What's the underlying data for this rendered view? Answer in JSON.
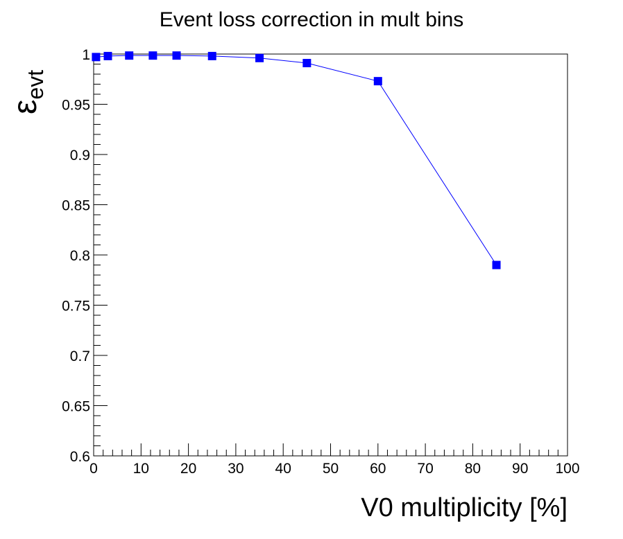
{
  "chart_data": {
    "type": "line",
    "title": "Event loss correction in mult bins",
    "xlabel": "V0 multiplicity [%]",
    "ylabel": "ε",
    "ylabel_subscript": "evt",
    "xlim": [
      0,
      100
    ],
    "ylim": [
      0.6,
      1.0
    ],
    "x_ticks": [
      0,
      10,
      20,
      30,
      40,
      50,
      60,
      70,
      80,
      90,
      100
    ],
    "x_tick_labels": [
      "0",
      "10",
      "20",
      "30",
      "40",
      "50",
      "60",
      "70",
      "80",
      "90",
      "100"
    ],
    "y_ticks": [
      0.6,
      0.65,
      0.7,
      0.75,
      0.8,
      0.85,
      0.9,
      0.95,
      1.0
    ],
    "y_tick_labels": [
      "0.6",
      "0.65",
      "0.7",
      "0.75",
      "0.8",
      "0.85",
      "0.9",
      "0.95",
      "1"
    ],
    "grid": false,
    "series": [
      {
        "color": "#0000ff",
        "marker": "square",
        "x": [
          0.5,
          3,
          7.5,
          12.5,
          17.5,
          25,
          35,
          45,
          60,
          85
        ],
        "y": [
          0.997,
          0.998,
          0.9985,
          0.9985,
          0.9985,
          0.998,
          0.996,
          0.991,
          0.973,
          0.79
        ]
      }
    ]
  }
}
